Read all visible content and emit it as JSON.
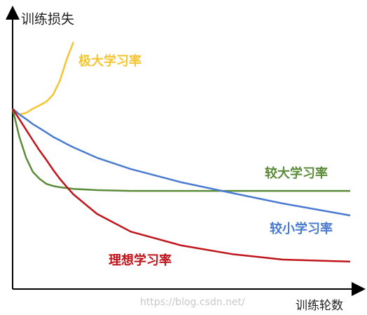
{
  "chart_data": {
    "type": "line",
    "x_label": "训练轮数",
    "y_label": "训练损失",
    "watermark": "https://blog.csdn.net/",
    "x": [
      0,
      2,
      4,
      6,
      8,
      10,
      12,
      14,
      16,
      18,
      25,
      35,
      50,
      65,
      80,
      100
    ],
    "xlim": [
      0,
      100
    ],
    "ylim": [
      0,
      100
    ],
    "series": [
      {
        "name": "极大学习率",
        "color": "#f5c431",
        "values": [
          69.1,
          66.9,
          67.5,
          69.1,
          70.4,
          71.8,
          74.5,
          79.8,
          87.9,
          94.6,
          null,
          null,
          null,
          null,
          null,
          null
        ]
      },
      {
        "name": "较大学习率",
        "color": "#5b8c3a",
        "values": [
          69.1,
          58.3,
          50.3,
          44.9,
          42.2,
          40.3,
          39.5,
          39.0,
          38.7,
          38.4,
          37.9,
          37.6,
          37.6,
          37.6,
          37.6,
          37.6
        ]
      },
      {
        "name": "较小学习率",
        "color": "#4a7bd0",
        "values": [
          69.1,
          66.9,
          65.1,
          63.2,
          61.6,
          60.0,
          58.3,
          57.0,
          55.6,
          54.3,
          50.3,
          46.0,
          40.9,
          36.8,
          32.8,
          28.2
        ]
      },
      {
        "name": "理想学习率",
        "color": "#c0141b",
        "values": [
          69.1,
          65.1,
          61.0,
          57.0,
          53.0,
          49.5,
          45.7,
          42.2,
          39.2,
          36.3,
          28.8,
          22.0,
          16.7,
          13.4,
          11.3,
          10.5
        ]
      }
    ]
  }
}
